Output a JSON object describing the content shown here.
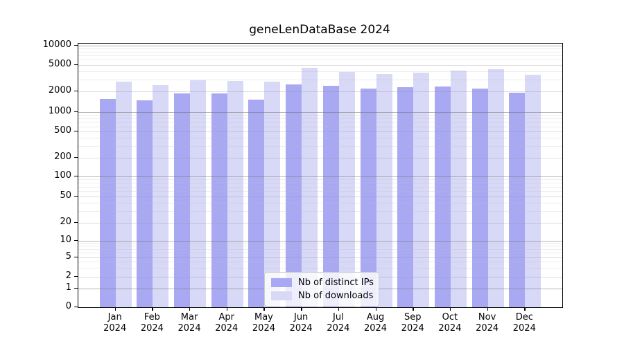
{
  "chart_data": {
    "type": "bar",
    "title": "geneLenDataBase 2024",
    "xlabel": "",
    "ylabel": "",
    "year_label": "2024",
    "categories": [
      "Jan",
      "Feb",
      "Mar",
      "Apr",
      "May",
      "Jun",
      "Jul",
      "Aug",
      "Sep",
      "Oct",
      "Nov",
      "Dec"
    ],
    "series": [
      {
        "name": "Nb of distinct IPs",
        "color": "#a9a9f3",
        "values": [
          1550,
          1490,
          1860,
          1850,
          1520,
          2560,
          2400,
          2210,
          2300,
          2350,
          2180,
          1910
        ]
      },
      {
        "name": "Nb of downloads",
        "color": "#d8d8f7",
        "values": [
          2780,
          2460,
          2900,
          2870,
          2770,
          4470,
          3920,
          3640,
          3820,
          4040,
          4240,
          3580
        ]
      }
    ],
    "yticks": [
      0,
      1,
      2,
      5,
      10,
      20,
      50,
      100,
      200,
      500,
      1000,
      2000,
      5000,
      10000
    ],
    "yscale": "log-like (compressed decade 1-10, linear 0-1)",
    "ylim": [
      0,
      10000
    ],
    "grid": true,
    "legend_position": "lower center",
    "background_color": "#ffffff",
    "grid_major_at": [
      1,
      10,
      100,
      1000,
      10000
    ],
    "grid_mid_at": [
      2,
      5,
      20,
      50,
      200,
      500,
      2000,
      5000
    ]
  }
}
